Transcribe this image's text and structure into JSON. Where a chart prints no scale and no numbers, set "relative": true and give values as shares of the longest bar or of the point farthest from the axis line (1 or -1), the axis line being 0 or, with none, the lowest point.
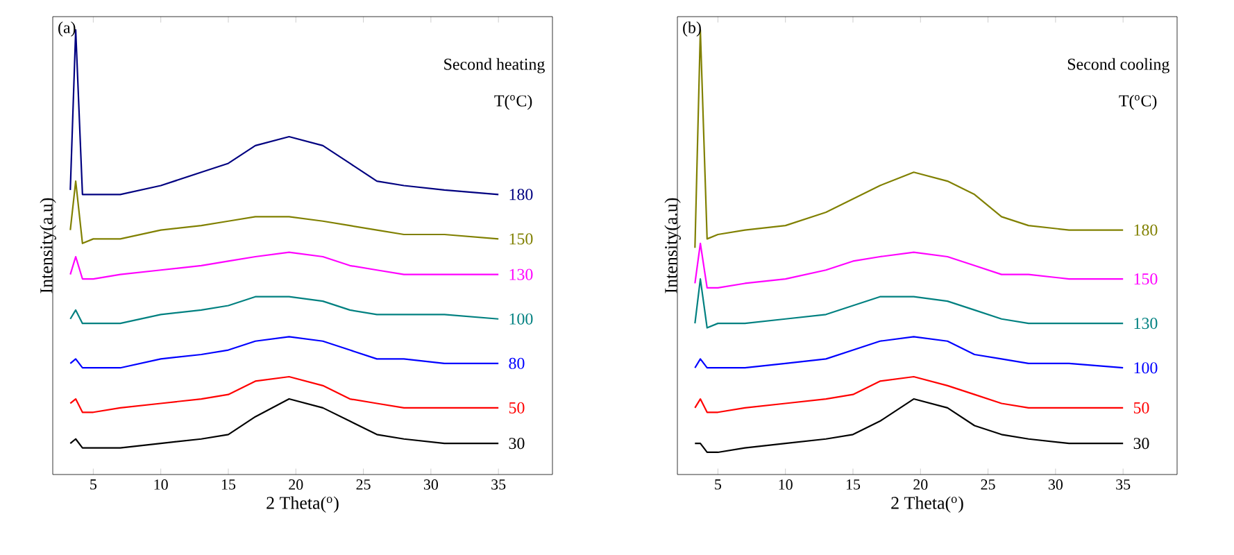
{
  "chart_data": [
    {
      "type": "line",
      "title": "(a)",
      "xlabel": "2 Theta($^{o}$)",
      "ylabel": "Intensity(a.u)",
      "legend_title": "T($^{o}$C)",
      "annotations": [
        "Second heating"
      ],
      "relative": true,
      "tick_labels": "x",
      "xlim": [
        2,
        39
      ],
      "xticks": [
        5,
        10,
        15,
        20,
        25,
        30,
        35
      ],
      "x": [
        3.3,
        3.7,
        4.2,
        5,
        7,
        10,
        13,
        15,
        17,
        19.5,
        22,
        24,
        26,
        28,
        31,
        35
      ],
      "series": [
        {
          "name": "30",
          "color": "#000000",
          "values": [
            0.07,
            0.08,
            0.06,
            0.06,
            0.06,
            0.07,
            0.08,
            0.09,
            0.13,
            0.17,
            0.15,
            0.12,
            0.09,
            0.08,
            0.07,
            0.07
          ]
        },
        {
          "name": "50",
          "color": "#ff0000",
          "values": [
            0.16,
            0.17,
            0.14,
            0.14,
            0.15,
            0.16,
            0.17,
            0.18,
            0.21,
            0.22,
            0.2,
            0.17,
            0.16,
            0.15,
            0.15,
            0.15
          ]
        },
        {
          "name": "80",
          "color": "#0000ff",
          "values": [
            0.25,
            0.26,
            0.24,
            0.24,
            0.24,
            0.26,
            0.27,
            0.28,
            0.3,
            0.31,
            0.3,
            0.28,
            0.26,
            0.26,
            0.25,
            0.25
          ]
        },
        {
          "name": "100",
          "color": "#008080",
          "values": [
            0.35,
            0.37,
            0.34,
            0.34,
            0.34,
            0.36,
            0.37,
            0.38,
            0.4,
            0.4,
            0.39,
            0.37,
            0.36,
            0.36,
            0.36,
            0.35
          ]
        },
        {
          "name": "130",
          "color": "#ff00ff",
          "values": [
            0.45,
            0.49,
            0.44,
            0.44,
            0.45,
            0.46,
            0.47,
            0.48,
            0.49,
            0.5,
            0.49,
            0.47,
            0.46,
            0.45,
            0.45,
            0.45
          ]
        },
        {
          "name": "150",
          "color": "#808000",
          "values": [
            0.55,
            0.66,
            0.52,
            0.53,
            0.53,
            0.55,
            0.56,
            0.57,
            0.58,
            0.58,
            0.57,
            0.56,
            0.55,
            0.54,
            0.54,
            0.53
          ]
        },
        {
          "name": "180",
          "color": "#000080",
          "values": [
            0.64,
            1,
            0.63,
            0.63,
            0.63,
            0.65,
            0.68,
            0.7,
            0.74,
            0.76,
            0.74,
            0.7,
            0.66,
            0.65,
            0.64,
            0.63
          ]
        }
      ]
    },
    {
      "type": "line",
      "title": "(b)",
      "xlabel": "2 Theta($^{o}$)",
      "ylabel": "Intensity(a.u)",
      "legend_title": "T($^{o}$C)",
      "annotations": [
        "Second cooling"
      ],
      "relative": true,
      "tick_labels": "x",
      "xlim": [
        2,
        39
      ],
      "xticks": [
        5,
        10,
        15,
        20,
        25,
        30,
        35
      ],
      "x": [
        3.3,
        3.7,
        4.2,
        5,
        7,
        10,
        13,
        15,
        17,
        19.5,
        22,
        24,
        26,
        28,
        31,
        35
      ],
      "series": [
        {
          "name": "30",
          "color": "#000000",
          "values": [
            0.07,
            0.07,
            0.05,
            0.05,
            0.06,
            0.07,
            0.08,
            0.09,
            0.12,
            0.17,
            0.15,
            0.11,
            0.09,
            0.08,
            0.07,
            0.07
          ]
        },
        {
          "name": "50",
          "color": "#ff0000",
          "values": [
            0.15,
            0.17,
            0.14,
            0.14,
            0.15,
            0.16,
            0.17,
            0.18,
            0.21,
            0.22,
            0.2,
            0.18,
            0.16,
            0.15,
            0.15,
            0.15
          ]
        },
        {
          "name": "100",
          "color": "#0000ff",
          "values": [
            0.24,
            0.26,
            0.24,
            0.24,
            0.24,
            0.25,
            0.26,
            0.28,
            0.3,
            0.31,
            0.3,
            0.27,
            0.26,
            0.25,
            0.25,
            0.24
          ]
        },
        {
          "name": "130",
          "color": "#008080",
          "values": [
            0.34,
            0.44,
            0.33,
            0.34,
            0.34,
            0.35,
            0.36,
            0.38,
            0.4,
            0.4,
            0.39,
            0.37,
            0.35,
            0.34,
            0.34,
            0.34
          ]
        },
        {
          "name": "150",
          "color": "#ff00ff",
          "values": [
            0.43,
            0.52,
            0.42,
            0.42,
            0.43,
            0.44,
            0.46,
            0.48,
            0.49,
            0.5,
            0.49,
            0.47,
            0.45,
            0.45,
            0.44,
            0.44
          ]
        },
        {
          "name": "180",
          "color": "#808000",
          "values": [
            0.51,
            1,
            0.53,
            0.54,
            0.55,
            0.56,
            0.59,
            0.62,
            0.65,
            0.68,
            0.66,
            0.63,
            0.58,
            0.56,
            0.55,
            0.55
          ]
        }
      ]
    }
  ]
}
